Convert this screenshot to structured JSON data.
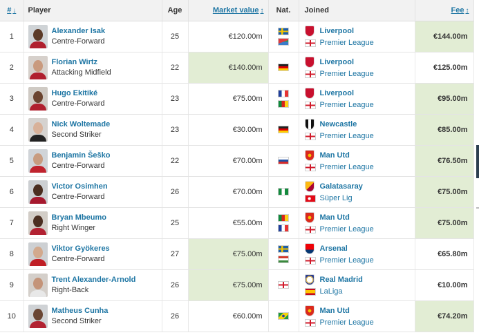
{
  "header": {
    "num": "#",
    "num_sort_icon": "↓",
    "player": "Player",
    "age": "Age",
    "market_value": "Market value",
    "sort_icon": "↕",
    "nationality": "Nat.",
    "joined": "Joined",
    "fee": "Fee"
  },
  "rows": [
    {
      "num": "1",
      "name": "Alexander Isak",
      "position": "Centre-Forward",
      "age": "25",
      "market_value": "€120.00m",
      "nat": [
        "sweden",
        "eritrea"
      ],
      "club": "Liverpool",
      "club_crest": "liverpool-crest",
      "league": "Premier League",
      "league_flag": "england",
      "fee": "€144.00m",
      "mv_hl": false,
      "fee_hl": true
    },
    {
      "num": "2",
      "name": "Florian Wirtz",
      "position": "Attacking Midfield",
      "age": "22",
      "market_value": "€140.00m",
      "nat": [
        "germany"
      ],
      "club": "Liverpool",
      "club_crest": "liverpool-crest",
      "league": "Premier League",
      "league_flag": "england",
      "fee": "€125.00m",
      "mv_hl": true,
      "fee_hl": false
    },
    {
      "num": "3",
      "name": "Hugo Ekitiké",
      "position": "Centre-Forward",
      "age": "23",
      "market_value": "€75.00m",
      "nat": [
        "france",
        "cameroon"
      ],
      "club": "Liverpool",
      "club_crest": "liverpool-crest",
      "league": "Premier League",
      "league_flag": "england",
      "fee": "€95.00m",
      "mv_hl": false,
      "fee_hl": true
    },
    {
      "num": "4",
      "name": "Nick Woltemade",
      "position": "Second Striker",
      "age": "23",
      "market_value": "€30.00m",
      "nat": [
        "germany"
      ],
      "club": "Newcastle",
      "club_crest": "newcastle-crest",
      "league": "Premier League",
      "league_flag": "england",
      "fee": "€85.00m",
      "mv_hl": false,
      "fee_hl": true
    },
    {
      "num": "5",
      "name": "Benjamin Šeško",
      "position": "Centre-Forward",
      "age": "22",
      "market_value": "€70.00m",
      "nat": [
        "slovenia"
      ],
      "club": "Man Utd",
      "club_crest": "man-utd-crest",
      "league": "Premier League",
      "league_flag": "england",
      "fee": "€76.50m",
      "mv_hl": false,
      "fee_hl": true
    },
    {
      "num": "6",
      "name": "Victor Osimhen",
      "position": "Centre-Forward",
      "age": "26",
      "market_value": "€70.00m",
      "nat": [
        "nigeria"
      ],
      "club": "Galatasaray",
      "club_crest": "galatasaray-crest",
      "league": "Süper Lig",
      "league_flag": "turkey",
      "fee": "€75.00m",
      "mv_hl": false,
      "fee_hl": true
    },
    {
      "num": "7",
      "name": "Bryan Mbeumo",
      "position": "Right Winger",
      "age": "25",
      "market_value": "€55.00m",
      "nat": [
        "cameroon",
        "france"
      ],
      "club": "Man Utd",
      "club_crest": "man-utd-crest",
      "league": "Premier League",
      "league_flag": "england",
      "fee": "€75.00m",
      "mv_hl": false,
      "fee_hl": true
    },
    {
      "num": "8",
      "name": "Viktor Gyökeres",
      "position": "Centre-Forward",
      "age": "27",
      "market_value": "€75.00m",
      "nat": [
        "sweden",
        "hungary"
      ],
      "club": "Arsenal",
      "club_crest": "arsenal-crest",
      "league": "Premier League",
      "league_flag": "england",
      "fee": "€65.80m",
      "mv_hl": true,
      "fee_hl": false
    },
    {
      "num": "9",
      "name": "Trent Alexander-Arnold",
      "position": "Right-Back",
      "age": "26",
      "market_value": "€75.00m",
      "nat": [
        "england"
      ],
      "club": "Real Madrid",
      "club_crest": "real-madrid-crest",
      "league": "LaLiga",
      "league_flag": "spain",
      "fee": "€10.00m",
      "mv_hl": true,
      "fee_hl": false
    },
    {
      "num": "10",
      "name": "Matheus Cunha",
      "position": "Second Striker",
      "age": "26",
      "market_value": "€60.00m",
      "nat": [
        "brazil"
      ],
      "club": "Man Utd",
      "club_crest": "man-utd-crest",
      "league": "Premier League",
      "league_flag": "england",
      "fee": "€74.20m",
      "mv_hl": false,
      "fee_hl": true
    }
  ],
  "colors": {
    "link": "#1d75a3",
    "highlight": "#e2edd4",
    "header_bg": "#f2f2f2"
  }
}
